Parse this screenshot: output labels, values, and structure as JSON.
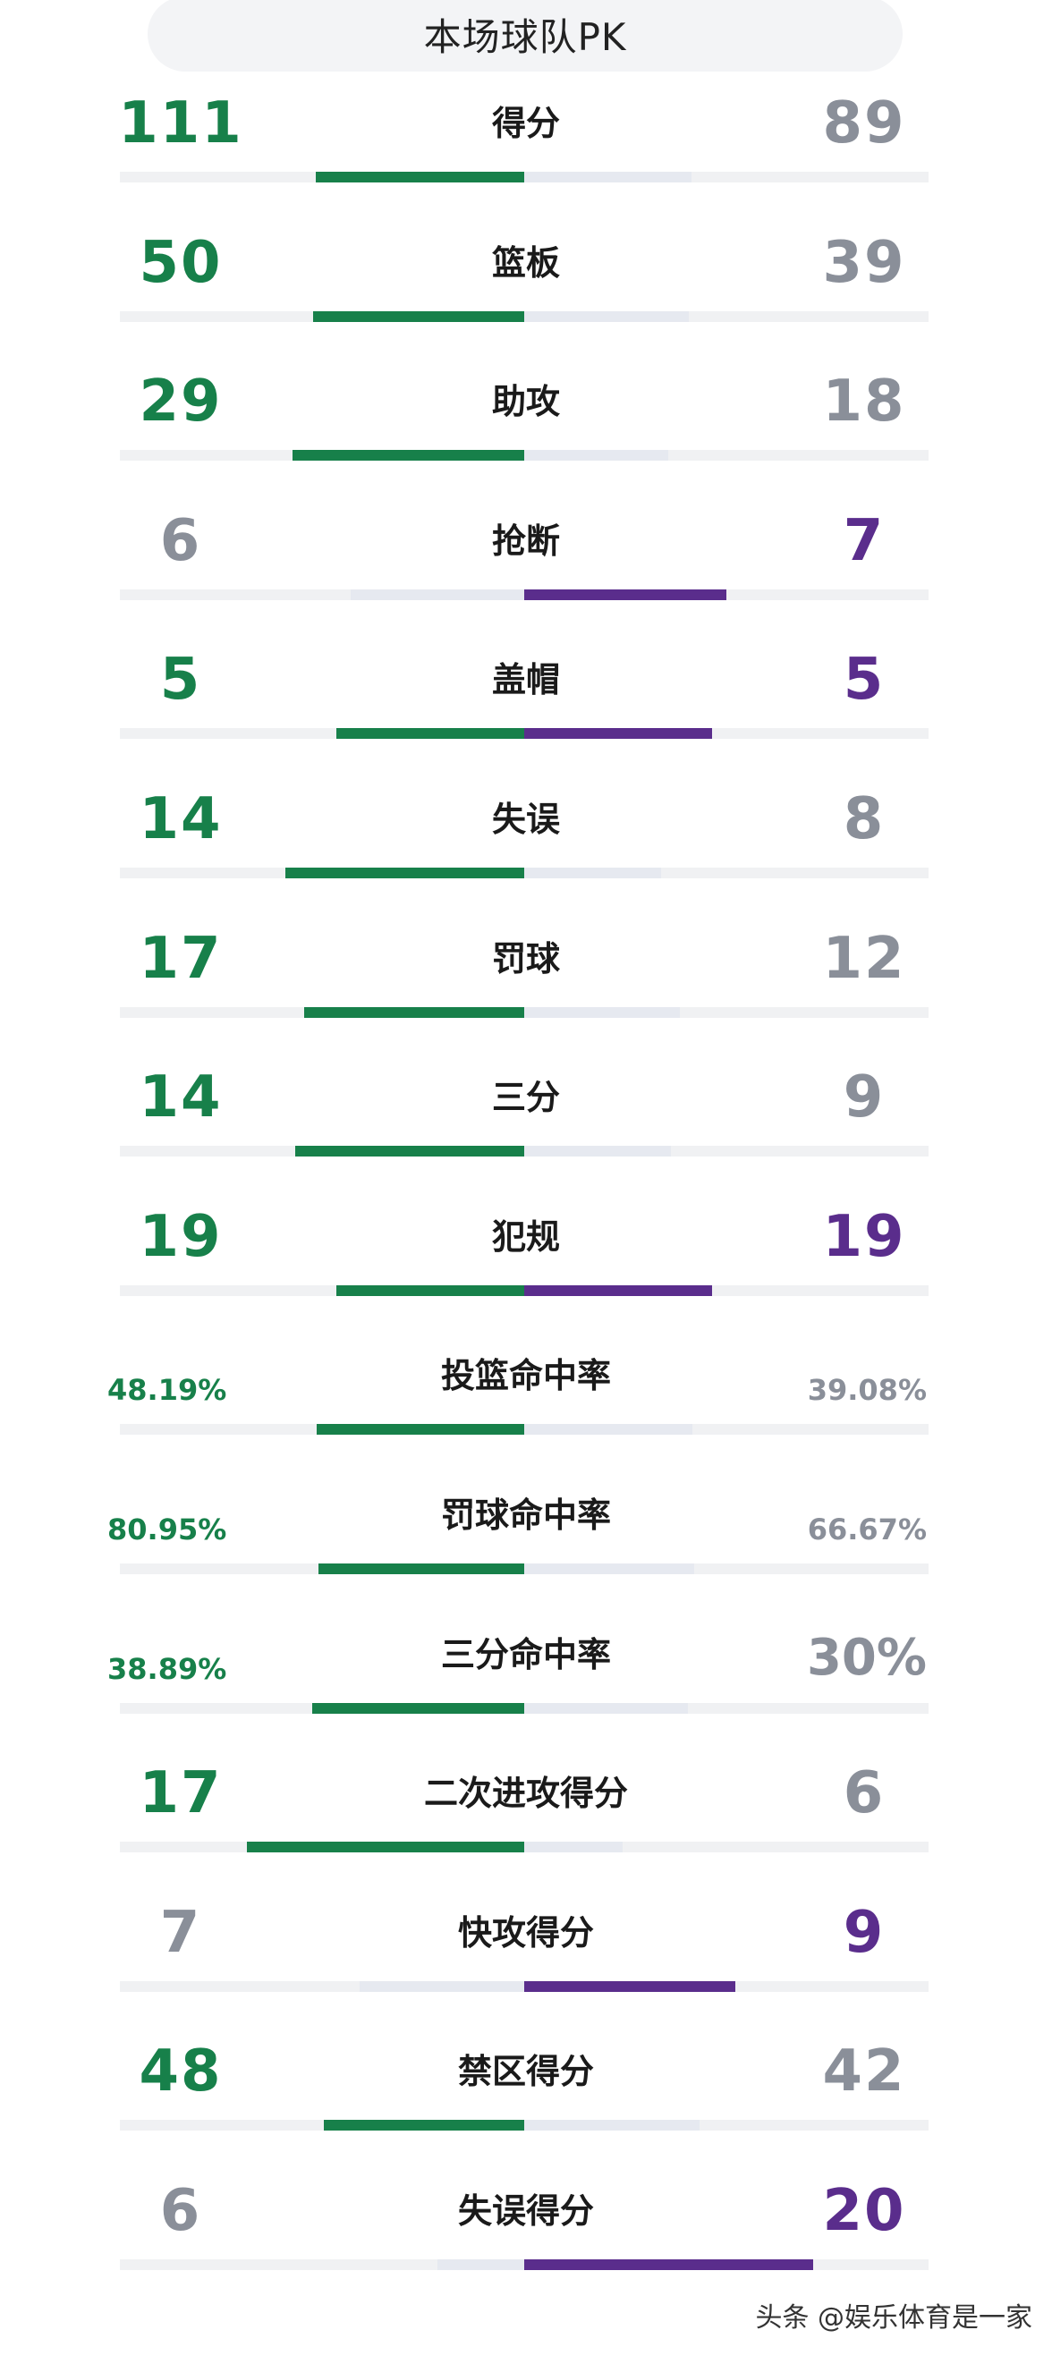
{
  "header": {
    "title": "本场球队PK"
  },
  "colors": {
    "left_win": "#17804a",
    "right_win": "#5a2d8c",
    "lose_gray": "#8a8f99",
    "bar_track": "#e6e9f0"
  },
  "stats": [
    {
      "label": "得分",
      "left": "111",
      "right": "89",
      "left_frac": 0.555,
      "right_frac": 0.445,
      "winner": "left"
    },
    {
      "label": "篮板",
      "left": "50",
      "right": "39",
      "left_frac": 0.562,
      "right_frac": 0.438,
      "winner": "left"
    },
    {
      "label": "助攻",
      "left": "29",
      "right": "18",
      "left_frac": 0.617,
      "right_frac": 0.383,
      "winner": "left"
    },
    {
      "label": "抢断",
      "left": "6",
      "right": "7",
      "left_frac": 0.462,
      "right_frac": 0.538,
      "winner": "right"
    },
    {
      "label": "盖帽",
      "left": "5",
      "right": "5",
      "left_frac": 0.5,
      "right_frac": 0.5,
      "winner": "tie"
    },
    {
      "label": "失误",
      "left": "14",
      "right": "8",
      "left_frac": 0.636,
      "right_frac": 0.364,
      "winner": "left"
    },
    {
      "label": "罚球",
      "left": "17",
      "right": "12",
      "left_frac": 0.586,
      "right_frac": 0.414,
      "winner": "left"
    },
    {
      "label": "三分",
      "left": "14",
      "right": "9",
      "left_frac": 0.609,
      "right_frac": 0.391,
      "winner": "left"
    },
    {
      "label": "犯规",
      "left": "19",
      "right": "19",
      "left_frac": 0.5,
      "right_frac": 0.5,
      "winner": "tie"
    },
    {
      "label": "投篮命中率",
      "left": "48.19%",
      "right": "39.08%",
      "left_frac": 0.552,
      "right_frac": 0.448,
      "winner": "left",
      "pct": true
    },
    {
      "label": "罚球命中率",
      "left": "80.95%",
      "right": "66.67%",
      "left_frac": 0.548,
      "right_frac": 0.452,
      "winner": "left",
      "pct": true
    },
    {
      "label": "三分命中率",
      "left": "38.89%",
      "right": "30%",
      "left_frac": 0.565,
      "right_frac": 0.435,
      "winner": "left",
      "pct": true,
      "right_big": true
    },
    {
      "label": "二次进攻得分",
      "left": "17",
      "right": "6",
      "left_frac": 0.739,
      "right_frac": 0.261,
      "winner": "left"
    },
    {
      "label": "快攻得分",
      "left": "7",
      "right": "9",
      "left_frac": 0.438,
      "right_frac": 0.562,
      "winner": "right"
    },
    {
      "label": "禁区得分",
      "left": "48",
      "right": "42",
      "left_frac": 0.533,
      "right_frac": 0.467,
      "winner": "left"
    },
    {
      "label": "失误得分",
      "left": "6",
      "right": "20",
      "left_frac": 0.231,
      "right_frac": 0.769,
      "winner": "right"
    }
  ],
  "watermark": "头条 @娱乐体育是一家"
}
